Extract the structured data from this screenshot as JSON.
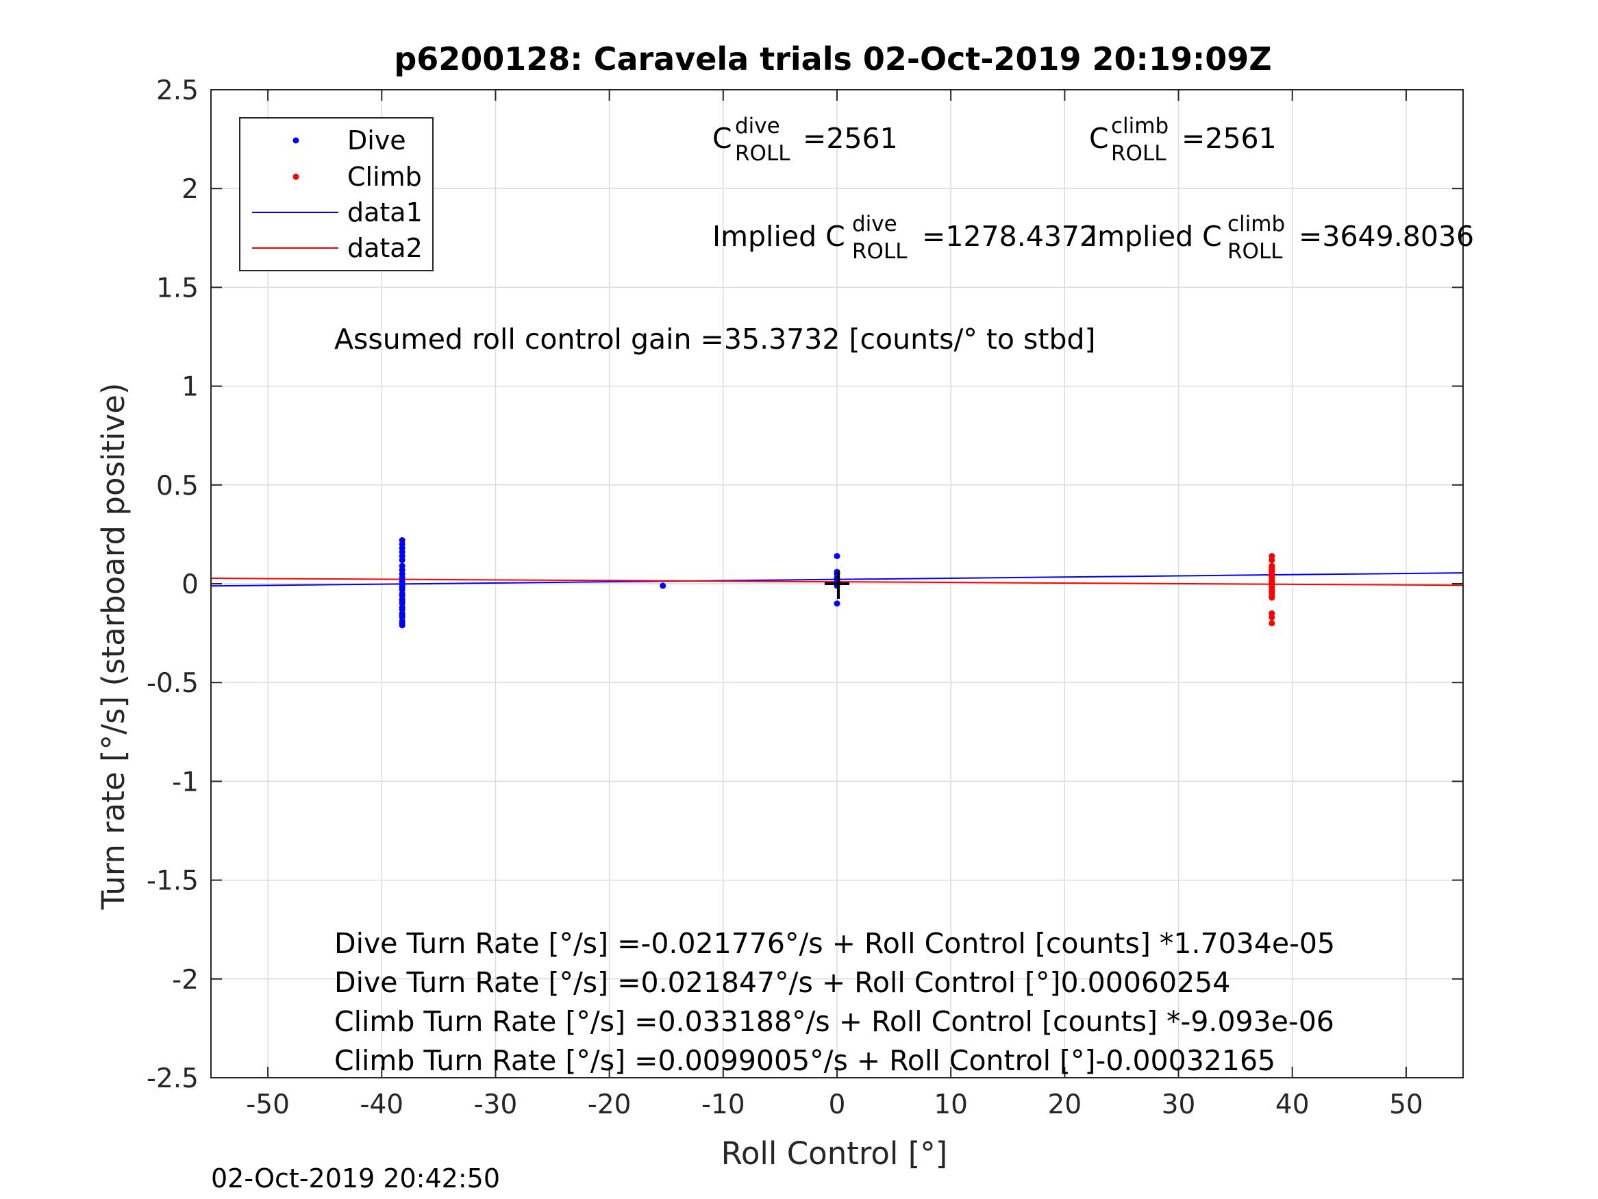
{
  "chart_data": {
    "type": "scatter",
    "title": "p6200128: Caravela trials 02-Oct-2019 20:19:09Z",
    "xlabel": "Roll Control [°]",
    "ylabel": "Turn rate [°/s] (starboard positive)",
    "xlim": [
      -55,
      55
    ],
    "ylim": [
      -2.5,
      2.5
    ],
    "xticks": [
      -50,
      -40,
      -30,
      -20,
      -10,
      0,
      10,
      20,
      30,
      40,
      50
    ],
    "yticks": [
      -2.5,
      -2,
      -1.5,
      -1,
      -0.5,
      0,
      0.5,
      1,
      1.5,
      2,
      2.5
    ],
    "grid": true,
    "legend_position": "top-left",
    "legend": [
      "Dive",
      "Climb",
      "data1",
      "data2"
    ],
    "series": [
      {
        "name": "Dive",
        "kind": "points",
        "color": "#0000ff",
        "x": [
          -38.2,
          -38.2,
          -38.2,
          -38.2,
          -38.2,
          -38.2,
          -38.2,
          -38.2,
          -38.2,
          -38.2,
          -38.2,
          -38.2,
          -38.2,
          -38.2,
          -38.2,
          -38.2,
          -38.2,
          -38.2,
          -38.2,
          -38.2,
          -38.2,
          -38.2,
          -38.2,
          -38.2,
          -38.2,
          -38.2,
          -38.2,
          -15.3,
          0,
          0,
          0,
          0,
          0,
          0,
          0,
          0
        ],
        "y": [
          0.22,
          0.2,
          0.18,
          0.16,
          0.14,
          0.12,
          0.09,
          0.07,
          0.05,
          0.03,
          0.01,
          -0.01,
          -0.02,
          -0.03,
          -0.05,
          -0.06,
          -0.08,
          -0.09,
          -0.1,
          -0.12,
          -0.13,
          -0.15,
          -0.16,
          -0.17,
          -0.19,
          -0.2,
          -0.21,
          -0.01,
          0.14,
          0.06,
          0.05,
          0.03,
          0.02,
          0.01,
          -0.01,
          -0.1
        ]
      },
      {
        "name": "Climb",
        "kind": "points",
        "color": "#ff0000",
        "x": [
          38.2,
          38.2,
          38.2,
          38.2,
          38.2,
          38.2,
          38.2,
          38.2,
          38.2,
          38.2,
          38.2,
          38.2,
          38.2,
          38.2,
          38.2,
          38.2,
          38.2,
          38.2,
          38.2,
          38.2,
          38.2,
          38.2
        ],
        "y": [
          0.14,
          0.12,
          0.09,
          0.08,
          0.07,
          0.06,
          0.05,
          0.04,
          0.03,
          0.02,
          0.01,
          0.0,
          -0.01,
          -0.02,
          -0.03,
          -0.04,
          -0.05,
          -0.06,
          -0.07,
          -0.15,
          -0.17,
          -0.2
        ]
      },
      {
        "name": "data1",
        "kind": "line",
        "color": "#0000ff",
        "x": [
          -55,
          55
        ],
        "y": [
          -0.0113,
          0.055
        ]
      },
      {
        "name": "data2",
        "kind": "line",
        "color": "#ff0000",
        "x": [
          -55,
          55
        ],
        "y": [
          0.0276,
          -0.0078
        ]
      }
    ],
    "origin_marker": {
      "x": 0,
      "y": 0,
      "color": "#000000"
    },
    "annotations": {
      "c_roll_dive": {
        "base": "C",
        "sup": "dive",
        "sub": "ROLL",
        "value": "=2561"
      },
      "c_roll_climb": {
        "base": "C",
        "sup": "climb",
        "sub": "ROLL",
        "value": "=2561"
      },
      "implied_dive": {
        "base": "Implied C",
        "sup": "dive",
        "sub": "ROLL",
        "value": "=1278.4372"
      },
      "implied_climb": {
        "base": "Implied C",
        "sup": "climb",
        "sub": "ROLL",
        "value": "=3649.8036"
      },
      "gain": "Assumed roll control gain =35.3732 [counts/° to stbd]",
      "fits": [
        "Dive Turn Rate [°/s] =-0.021776°/s + Roll Control [counts] *1.7034e-05",
        "Dive Turn Rate [°/s] =0.021847°/s + Roll Control [°]0.00060254",
        "Climb Turn Rate [°/s] =0.033188°/s + Roll Control [counts] *-9.093e-06",
        "Climb Turn Rate [°/s] =0.0099005°/s + Roll Control [°]-0.00032165"
      ]
    },
    "timestamp": "02-Oct-2019 20:42:50"
  }
}
